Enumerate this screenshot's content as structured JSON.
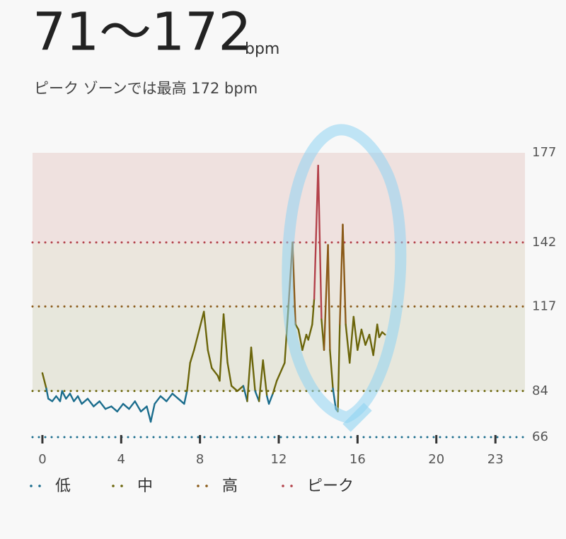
{
  "header": {
    "range": "71〜172",
    "unit": "bpm",
    "subtitle": "ピーク ゾーンでは最高 172 bpm"
  },
  "chart_data": {
    "type": "line",
    "x": [
      0.0,
      0.2,
      0.3,
      0.5,
      0.7,
      0.9,
      1.0,
      1.2,
      1.4,
      1.6,
      1.8,
      2.0,
      2.3,
      2.6,
      2.9,
      3.2,
      3.5,
      3.8,
      4.1,
      4.4,
      4.7,
      5.0,
      5.3,
      5.5,
      5.7,
      6.0,
      6.3,
      6.6,
      6.9,
      7.2,
      7.34,
      7.5,
      7.7,
      7.9,
      8.2,
      8.4,
      8.6,
      8.9,
      9.0,
      9.2,
      9.4,
      9.6,
      9.9,
      10.2,
      10.4,
      10.6,
      10.8,
      11.0,
      11.2,
      11.4,
      11.5,
      11.7,
      11.9,
      12.3,
      12.5,
      12.7,
      12.85,
      13.0,
      13.2,
      13.4,
      13.5,
      13.7,
      13.8,
      14.0,
      14.17,
      14.3,
      14.5,
      14.6,
      14.75,
      14.9,
      15.0,
      15.1,
      15.25,
      15.4,
      15.6,
      15.8,
      16.0,
      16.2,
      16.4,
      16.6,
      16.8,
      17.0,
      17.1,
      17.25,
      17.4
    ],
    "values": [
      91,
      85,
      81,
      80,
      82,
      80,
      84,
      81,
      83,
      80,
      82,
      79,
      81,
      78,
      80,
      77,
      78,
      76,
      79,
      77,
      80,
      76,
      78,
      72,
      79,
      82,
      80,
      83,
      81,
      79,
      84,
      95,
      100,
      106,
      115,
      100,
      93,
      90,
      88,
      114,
      95,
      86,
      84,
      86,
      80,
      101,
      84,
      80,
      96,
      82,
      79,
      83,
      88,
      95,
      118,
      142,
      110,
      108,
      100,
      106,
      104,
      110,
      120,
      172,
      112,
      100,
      141,
      100,
      85,
      77,
      76,
      110,
      149,
      110,
      95,
      113,
      100,
      108,
      102,
      106,
      98,
      110,
      105,
      107,
      106
    ],
    "xlim": [
      -0.5,
      24.5
    ],
    "xticks": [
      0,
      4,
      8,
      12,
      16,
      20,
      23
    ],
    "ylim": [
      66,
      177
    ],
    "yticks": [
      66,
      84,
      117,
      142,
      177
    ],
    "zones": [
      {
        "name": "低",
        "color": "#1b6d8d",
        "line": 66
      },
      {
        "name": "中",
        "color": "#6b650a",
        "line": 84,
        "band": "#e7e7dc"
      },
      {
        "name": "高",
        "color": "#8a5a18",
        "line": 117,
        "band": "#ebe6dd"
      },
      {
        "name": "ピーク",
        "color": "#b3414a",
        "line": 142,
        "band": "#efe1df"
      }
    ]
  }
}
